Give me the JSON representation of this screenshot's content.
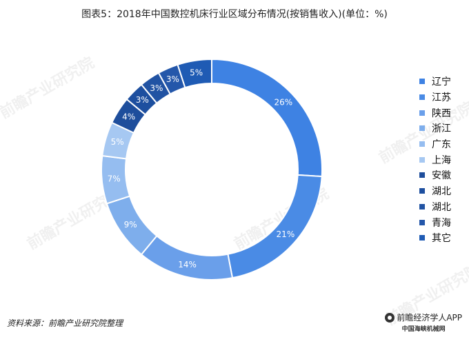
{
  "title": "图表5：2018年中国数控机床行业区域分布情况(按销售收入)(单位：%)",
  "source": "资料来源：前瞻产业研究院整理",
  "brand": {
    "app_name": "前瞻经济学人APP",
    "network": "中国海峡机械网"
  },
  "watermark_text": "前瞻产业研究院",
  "chart_data": {
    "type": "pie",
    "donut": true,
    "title": "图表5：2018年中国数控机床行业区域分布情况(按销售收入)(单位：%)",
    "unit": "%",
    "categories": [
      "辽宁",
      "江苏",
      "陕西",
      "浙江",
      "广东",
      "上海",
      "安徽",
      "湖北",
      "湖北",
      "青海",
      "其它"
    ],
    "values": [
      26,
      21,
      14,
      9,
      7,
      5,
      4,
      3,
      3,
      3,
      5
    ],
    "colors": [
      "#3E82E3",
      "#4A8BE5",
      "#6A9FEA",
      "#7EAEEC",
      "#95BDF0",
      "#A6C8F2",
      "#1E4E9C",
      "#1D4F9F",
      "#2153A3",
      "#2457AA",
      "#1F5BB4"
    ],
    "legend_position": "right"
  }
}
